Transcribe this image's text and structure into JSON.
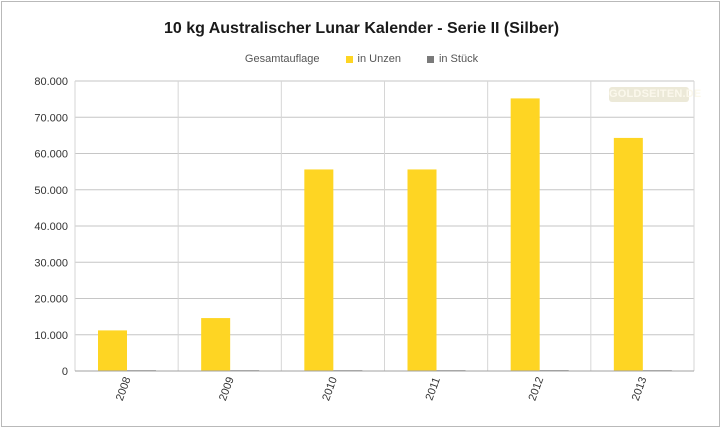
{
  "chart_data": {
    "type": "bar",
    "title": "10 kg Australischer Lunar Kalender - Serie II (Silber)",
    "legend_heading": "Gesamtauflage",
    "categories": [
      "2008",
      "2009",
      "2010",
      "2011",
      "2012",
      "2013"
    ],
    "series": [
      {
        "name": "in Unzen",
        "color": "#fed523",
        "values": [
          11200,
          14600,
          55600,
          55600,
          75200,
          64300
        ]
      },
      {
        "name": "in Stück",
        "color": "#7a7a7a",
        "values": [
          35,
          45,
          173,
          173,
          234,
          200
        ]
      }
    ],
    "xlabel": "",
    "ylabel": "",
    "ylim": [
      0,
      80000
    ],
    "y_ticks": [
      0,
      10000,
      20000,
      30000,
      40000,
      50000,
      60000,
      70000,
      80000
    ],
    "y_tick_labels": [
      "0",
      "10.000",
      "20.000",
      "30.000",
      "40.000",
      "50.000",
      "60.000",
      "70.000",
      "80.000"
    ],
    "grid": true,
    "legend_position": "top-center",
    "watermark": "GOLDSEITEN.DE"
  }
}
